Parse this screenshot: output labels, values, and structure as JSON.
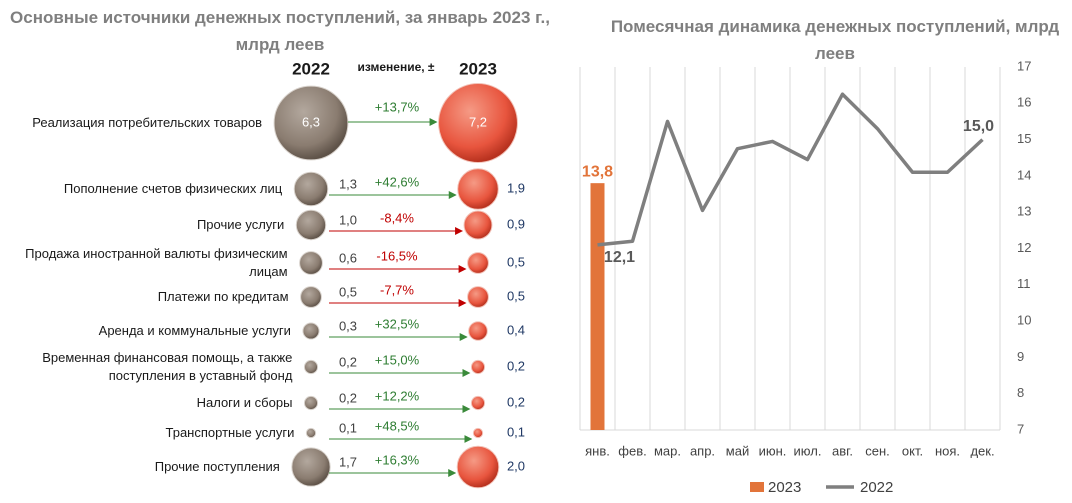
{
  "chart_data": [
    {
      "type": "bubble-compare",
      "title": "Основные источники денежных поступлений, за январь 2023 г., млрд  леев",
      "categories": [
        "Реализация потребительских товаров",
        "Пополнение счетов физических лиц",
        "Прочие услуги",
        "Продажа иностранной валюты физическим лицам",
        "Платежи по кредитам",
        "Аренда и коммунальные услуги",
        "Временная финансовая помощь, а также поступления в уставный фонд",
        "Налоги и сборы",
        "Транспортные услуги",
        "Прочие поступления"
      ],
      "series": [
        {
          "name": "2022",
          "color": "#8a7c70",
          "values": [
            6.3,
            1.3,
            1.0,
            0.6,
            0.5,
            0.3,
            0.2,
            0.2,
            0.1,
            1.7
          ],
          "value_labels": [
            "6,3",
            "1,3",
            "1,0",
            "0,6",
            "0,5",
            "0,3",
            "0,2",
            "0,2",
            "0,1",
            "1,7"
          ]
        },
        {
          "name": "2023",
          "color": "#e8553e",
          "values": [
            7.2,
            1.9,
            0.9,
            0.5,
            0.5,
            0.4,
            0.2,
            0.2,
            0.1,
            2.0
          ],
          "value_labels": [
            "7,2",
            "1,9",
            "0,9",
            "0,5",
            "0,5",
            "0,4",
            "0,2",
            "0,2",
            "0,1",
            "2,0"
          ]
        }
      ],
      "change": {
        "name": "изменение, ±",
        "values": [
          13.7,
          42.6,
          -8.4,
          -16.5,
          -7.7,
          32.5,
          15.0,
          12.2,
          48.5,
          16.3
        ],
        "value_labels": [
          "+13,7%",
          "+42,6%",
          "-8,4%",
          "-16,5%",
          "-7,7%",
          "+32,5%",
          "+15,0%",
          "+12,2%",
          "+48,5%",
          "+16,3%"
        ]
      }
    },
    {
      "type": "line",
      "title": "Помесячная динамика денежных поступлений, млрд леев",
      "categories": [
        "янв.",
        "фев.",
        "мар.",
        "апр.",
        "май",
        "июн.",
        "июл.",
        "авг.",
        "сен.",
        "окт.",
        "ноя.",
        "дек."
      ],
      "series": [
        {
          "name": "2023",
          "type": "bar",
          "color": "#e2743a",
          "values": [
            13.8,
            null,
            null,
            null,
            null,
            null,
            null,
            null,
            null,
            null,
            null,
            null
          ],
          "value_labels": [
            "13,8",
            null,
            null,
            null,
            null,
            null,
            null,
            null,
            null,
            null,
            null,
            null
          ]
        },
        {
          "name": "2022",
          "type": "line",
          "color": "#7f7f7f",
          "values": [
            12.1,
            12.2,
            15.5,
            13.05,
            14.75,
            14.95,
            14.45,
            16.25,
            15.3,
            14.1,
            14.1,
            15.0
          ],
          "value_labels": [
            "12,1",
            null,
            null,
            null,
            null,
            null,
            null,
            null,
            null,
            null,
            null,
            "15,0"
          ]
        }
      ],
      "ylim": [
        7,
        17
      ],
      "yticks": [
        7,
        8,
        9,
        10,
        11,
        12,
        13,
        14,
        15,
        16,
        17
      ],
      "grid": "x",
      "legend": "bottom"
    }
  ]
}
